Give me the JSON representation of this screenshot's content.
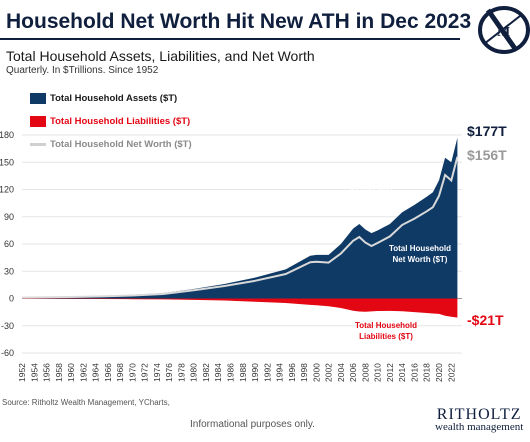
{
  "title": "Household Net Worth Hit New ATH in Dec 2023",
  "subtitle": "Total Household Assets, Liabilities, and Net Worth",
  "subnote": "Quarterly. In $Trillions. Since 1952",
  "legend": {
    "assets": "Total Household Assets ($T)",
    "liabilities": "Total Household Liabilities ($T)",
    "networth": "Total Household Net Worth ($T)"
  },
  "colors": {
    "assets": "#0f3a66",
    "liabilities": "#e30613",
    "networth": "#d0d0d0",
    "title": "#0f1f3d"
  },
  "annotations": {
    "assets_end": "$177T",
    "networth_end": "$156T",
    "liabilities_end": "-$21T",
    "assets_label": "Total Household Assets ($T)",
    "networth_label": "Total Household Net Worth ($T)",
    "liabilities_label": "Total Household Liabilities ($T)"
  },
  "source": "Source: Ritholtz Wealth Management, YCharts,",
  "disclaimer": "Informational purposes only.",
  "brand": {
    "name": "RITHOLTZ",
    "tagline": "wealth management"
  },
  "chart_data": {
    "type": "area",
    "ylim": [
      -60,
      180
    ],
    "yticks": [
      -60,
      -30,
      0,
      30,
      60,
      90,
      120,
      150,
      180
    ],
    "xticks": [
      "1952",
      "1954",
      "1956",
      "1958",
      "1960",
      "1962",
      "1964",
      "1966",
      "1968",
      "1970",
      "1972",
      "1974",
      "1976",
      "1978",
      "1980",
      "1982",
      "1984",
      "1986",
      "1988",
      "1990",
      "1992",
      "1994",
      "1996",
      "1998",
      "2000",
      "2002",
      "2004",
      "2006",
      "2008",
      "2010",
      "2012",
      "2014",
      "2016",
      "2018",
      "2020",
      "2022"
    ],
    "x": [
      1952,
      1955,
      1960,
      1965,
      1970,
      1975,
      1980,
      1985,
      1990,
      1995,
      1999,
      2000,
      2002,
      2004,
      2006,
      2007,
      2008,
      2009,
      2010,
      2012,
      2014,
      2016,
      2018,
      2019,
      2020,
      2021,
      2022,
      2023
    ],
    "series": [
      {
        "name": "Total Household Assets ($T)",
        "values": [
          1.2,
          1.5,
          2.1,
          2.9,
          4.1,
          6.0,
          10.5,
          16,
          23,
          32,
          47,
          48,
          48,
          60,
          77,
          82,
          76,
          72,
          75,
          82,
          95,
          103,
          112,
          117,
          130,
          155,
          150,
          177
        ]
      },
      {
        "name": "Total Household Liabilities ($T)",
        "values": [
          -0.2,
          -0.3,
          -0.4,
          -0.6,
          -0.8,
          -1.0,
          -1.5,
          -2.2,
          -3.5,
          -5.0,
          -7.0,
          -7.5,
          -8.5,
          -10.5,
          -13.5,
          -14.3,
          -14.5,
          -14.2,
          -13.8,
          -13.6,
          -14.0,
          -15.0,
          -16.0,
          -16.5,
          -17.0,
          -19.0,
          -20.0,
          -21.0
        ]
      },
      {
        "name": "Total Household Net Worth ($T)",
        "values": [
          1.0,
          1.2,
          1.7,
          2.3,
          3.3,
          5.0,
          9.0,
          13.8,
          19.5,
          27,
          40,
          40.5,
          39.5,
          49.5,
          63.5,
          67.7,
          61.5,
          57.8,
          61.2,
          68.4,
          81,
          88,
          96,
          100.5,
          113,
          136,
          130,
          156
        ]
      }
    ]
  }
}
